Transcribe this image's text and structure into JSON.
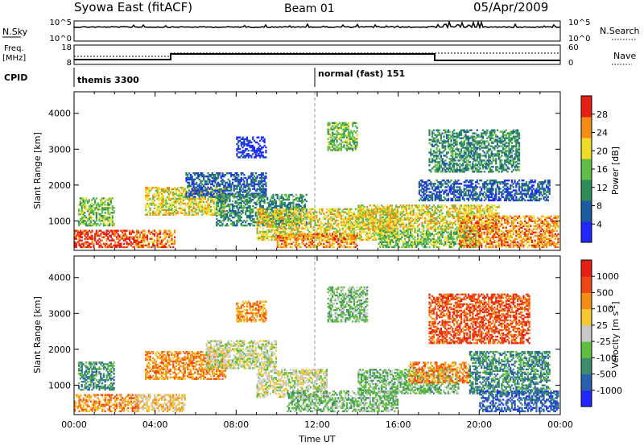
{
  "header": {
    "station": "Syowa East (fitACF)",
    "beam": "Beam 01",
    "date": "05/Apr/2009"
  },
  "top_panels": {
    "nsky_label": "N.Sky",
    "nsky_ticks": [
      "10^5",
      "10^0"
    ],
    "nsearch_label": "N.Search",
    "nsearch_ticks": [
      "10^5",
      "10^0"
    ],
    "freq_label": "Freq.",
    "freq_unit": "[MHz]",
    "freq_ticks": [
      "18",
      "8"
    ],
    "nave_label": "Nave",
    "nave_ticks": [
      "60",
      "0"
    ],
    "cpid_label": "CPID",
    "cpid_segments": [
      {
        "start_hour": 0,
        "name": "themis 3300"
      },
      {
        "start_hour": 12,
        "name": "normal (fast) 151"
      }
    ]
  },
  "chart_data": [
    {
      "type": "heatmap",
      "name": "power-panel",
      "xlabel": "",
      "ylabel": "Slant Range [km]",
      "xlim": [
        0,
        24
      ],
      "ylim": [
        180,
        4600
      ],
      "y_ticks": [
        "1000",
        "2000",
        "3000",
        "4000"
      ],
      "x_ticks": [],
      "colorbar": {
        "label": "Power [dB]",
        "ticks": [
          "4",
          "8",
          "12",
          "16",
          "20",
          "24",
          "28"
        ],
        "colors": [
          "#1e28ff",
          "#1e5aa0",
          "#2e8b57",
          "#5fbe4a",
          "#f0dc28",
          "#f58c14",
          "#e61e14"
        ]
      },
      "echo_regions": [
        {
          "t0": 0.0,
          "t1": 3.2,
          "r0": 300,
          "r1": 800,
          "level": 6
        },
        {
          "t0": 0.2,
          "t1": 2.0,
          "r0": 900,
          "r1": 1700,
          "level": 3
        },
        {
          "t0": 3.0,
          "t1": 5.0,
          "r0": 300,
          "r1": 800,
          "level": 5
        },
        {
          "t0": 3.5,
          "t1": 7.5,
          "r0": 1200,
          "r1": 2000,
          "level": 4
        },
        {
          "t0": 5.5,
          "t1": 9.5,
          "r0": 1700,
          "r1": 2400,
          "level": 1
        },
        {
          "t0": 7.0,
          "t1": 11.5,
          "r0": 900,
          "r1": 1800,
          "level": 2
        },
        {
          "t0": 8.0,
          "t1": 9.5,
          "r0": 2800,
          "r1": 3400,
          "level": 0
        },
        {
          "t0": 9.0,
          "t1": 16.0,
          "r0": 500,
          "r1": 1400,
          "level": 4
        },
        {
          "t0": 10.0,
          "t1": 14.0,
          "r0": 300,
          "r1": 700,
          "level": 5
        },
        {
          "t0": 12.5,
          "t1": 14.0,
          "r0": 3000,
          "r1": 3800,
          "level": 3
        },
        {
          "t0": 14.0,
          "t1": 21.0,
          "r0": 800,
          "r1": 1500,
          "level": 4
        },
        {
          "t0": 15.0,
          "t1": 20.0,
          "r0": 300,
          "r1": 800,
          "level": 3
        },
        {
          "t0": 17.0,
          "t1": 23.5,
          "r0": 1600,
          "r1": 2200,
          "level": 1
        },
        {
          "t0": 17.5,
          "t1": 22.0,
          "r0": 2400,
          "r1": 3600,
          "level": 2
        },
        {
          "t0": 19.0,
          "t1": 24.0,
          "r0": 300,
          "r1": 1200,
          "level": 5
        }
      ]
    },
    {
      "type": "heatmap",
      "name": "velocity-panel",
      "xlabel": "Time UT",
      "ylabel": "Slant Range [km]",
      "xlim": [
        0,
        24
      ],
      "ylim": [
        180,
        4600
      ],
      "y_ticks": [
        "1000",
        "2000",
        "3000",
        "4000"
      ],
      "x_ticks": [
        "00:00",
        "04:00",
        "08:00",
        "12:00",
        "16:00",
        "20:00",
        "00:00"
      ],
      "colorbar": {
        "label": "Velocity [m s",
        "label_sup": "-1",
        "label_end": "]",
        "ticks": [
          "1000",
          "500",
          "100",
          "25",
          "-25",
          "-100",
          "-500",
          "-1000"
        ],
        "colors": [
          "#1e28ff",
          "#2a5fb0",
          "#3c8c6e",
          "#5fbe3c",
          "#c8c8c8",
          "#f5c832",
          "#f58c14",
          "#f04614",
          "#e61e14"
        ]
      },
      "echo_regions": [
        {
          "t0": 0.0,
          "t1": 3.2,
          "r0": 300,
          "r1": 800,
          "level": 6
        },
        {
          "t0": 0.2,
          "t1": 2.0,
          "r0": 900,
          "r1": 1700,
          "level": 2
        },
        {
          "t0": 3.0,
          "t1": 5.5,
          "r0": 300,
          "r1": 800,
          "level": 5
        },
        {
          "t0": 3.5,
          "t1": 7.5,
          "r0": 1200,
          "r1": 2000,
          "level": 6
        },
        {
          "t0": 6.5,
          "t1": 10.0,
          "r0": 1500,
          "r1": 2300,
          "level": 4
        },
        {
          "t0": 8.0,
          "t1": 9.5,
          "r0": 2800,
          "r1": 3400,
          "level": 6
        },
        {
          "t0": 9.0,
          "t1": 12.5,
          "r0": 700,
          "r1": 1500,
          "level": 4
        },
        {
          "t0": 10.5,
          "t1": 16.0,
          "r0": 300,
          "r1": 900,
          "level": 3
        },
        {
          "t0": 12.5,
          "t1": 14.5,
          "r0": 2800,
          "r1": 3800,
          "level": 3
        },
        {
          "t0": 14.0,
          "t1": 19.0,
          "r0": 800,
          "r1": 1500,
          "level": 3
        },
        {
          "t0": 16.5,
          "t1": 19.5,
          "r0": 1100,
          "r1": 1700,
          "level": 6
        },
        {
          "t0": 17.5,
          "t1": 22.5,
          "r0": 2200,
          "r1": 3600,
          "level": 7
        },
        {
          "t0": 19.5,
          "t1": 23.5,
          "r0": 800,
          "r1": 2000,
          "level": 2
        },
        {
          "t0": 20.0,
          "t1": 24.0,
          "r0": 300,
          "r1": 900,
          "level": 1
        }
      ]
    }
  ]
}
